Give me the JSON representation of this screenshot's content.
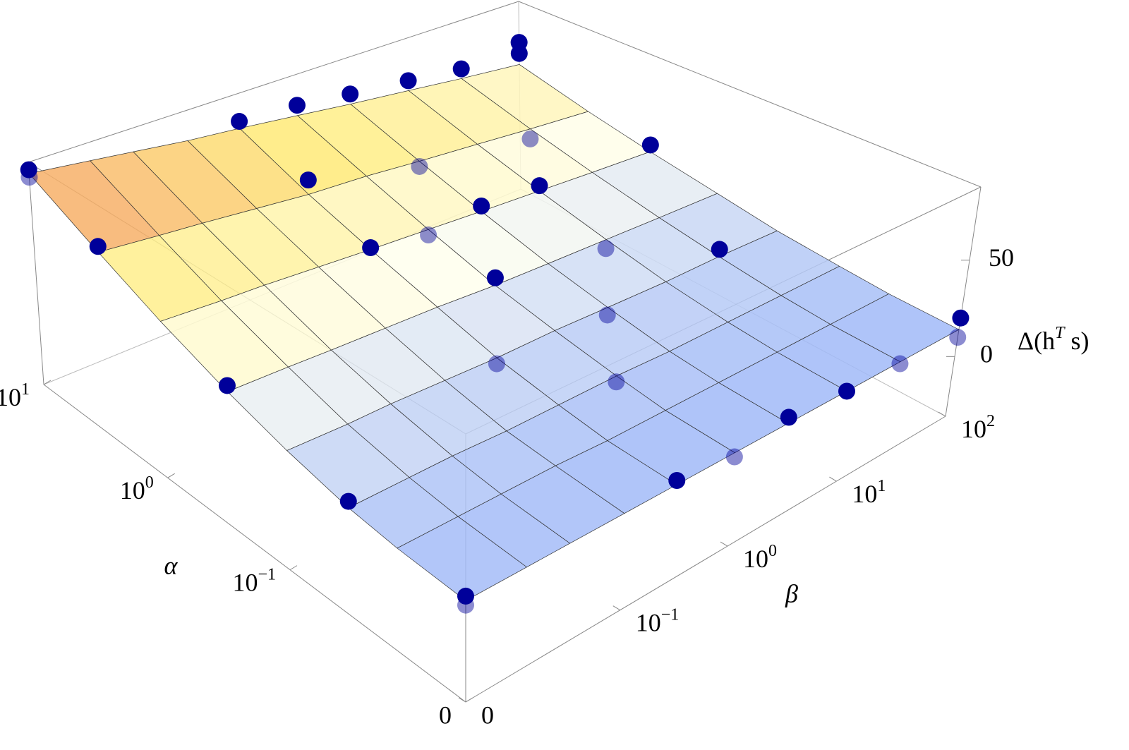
{
  "chart_data": {
    "type": "surface3d",
    "xlabel": "α",
    "ylabel": "β",
    "zlabel": [
      "Δ(h",
      "T",
      " s)"
    ],
    "xlim": [
      0,
      10
    ],
    "ylim": [
      0,
      100
    ],
    "zlim": [
      -31,
      88
    ],
    "xticks": [
      0,
      {
        "value": 0.1,
        "label": "10",
        "exponent": "−1"
      },
      {
        "value": 1,
        "label": "10",
        "exponent": "0"
      },
      {
        "value": 10,
        "label": "10",
        "exponent": "1"
      }
    ],
    "yticks": [
      0,
      {
        "value": 0.1,
        "label": "10",
        "exponent": "−1"
      },
      {
        "value": 1,
        "label": "10",
        "exponent": "0"
      },
      {
        "value": 10,
        "label": "10",
        "exponent": "1"
      },
      {
        "value": 100,
        "label": "10",
        "exponent": "2"
      }
    ],
    "zticks": [
      0,
      50
    ],
    "alpha": [
      0,
      0.01,
      0.03,
      0.1,
      0.3,
      1,
      3,
      10
    ],
    "beta": [
      0,
      0.01,
      0.03,
      0.1,
      0.3,
      1,
      3,
      10,
      30,
      100
    ],
    "z": [
      [
        14,
        14,
        14,
        14,
        14,
        14,
        14,
        14,
        14,
        14
      ],
      [
        16,
        16,
        16,
        16,
        15,
        15,
        15,
        15,
        15,
        15
      ],
      [
        19,
        19,
        19,
        18,
        18,
        18,
        17,
        17,
        17,
        17
      ],
      [
        26,
        25,
        25,
        24,
        23,
        23,
        22,
        21,
        21,
        20
      ],
      [
        35,
        34,
        33,
        32,
        31,
        29,
        28,
        27,
        26,
        25
      ],
      [
        48,
        46,
        45,
        43,
        41,
        39,
        37,
        35,
        33,
        31
      ],
      [
        63,
        60,
        58,
        55,
        52,
        50,
        47,
        44,
        41,
        38
      ],
      [
        82,
        78,
        75,
        71,
        68,
        64,
        60,
        56,
        52,
        48
      ]
    ],
    "points": {
      "color": "#00009a",
      "alpha": [
        0,
        0,
        0.03,
        0.3,
        3,
        10,
        10,
        0,
        0.1,
        1,
        3,
        10,
        0,
        0.03,
        0.3,
        1,
        10,
        0,
        0.1,
        1,
        3,
        10,
        0,
        0.3,
        1,
        10,
        0,
        0.1,
        3,
        10,
        0,
        0,
        1,
        10,
        10
      ],
      "beta": [
        0,
        0,
        0,
        0,
        0,
        0,
        0,
        0.3,
        0.3,
        0.3,
        0.3,
        0.3,
        1,
        1,
        1,
        1,
        1,
        3,
        3,
        3,
        3,
        3,
        10,
        10,
        10,
        10,
        30,
        30,
        30,
        30,
        100,
        100,
        100,
        100,
        100
      ],
      "z": [
        12,
        16,
        22,
        38,
        66,
        84,
        80,
        16,
        20,
        42,
        60,
        72,
        12,
        15,
        33,
        36,
        70,
        17,
        18,
        40,
        44,
        66,
        14,
        22,
        38,
        62,
        13,
        25,
        35,
        58,
        10,
        20,
        35,
        55,
        62
      ]
    }
  }
}
